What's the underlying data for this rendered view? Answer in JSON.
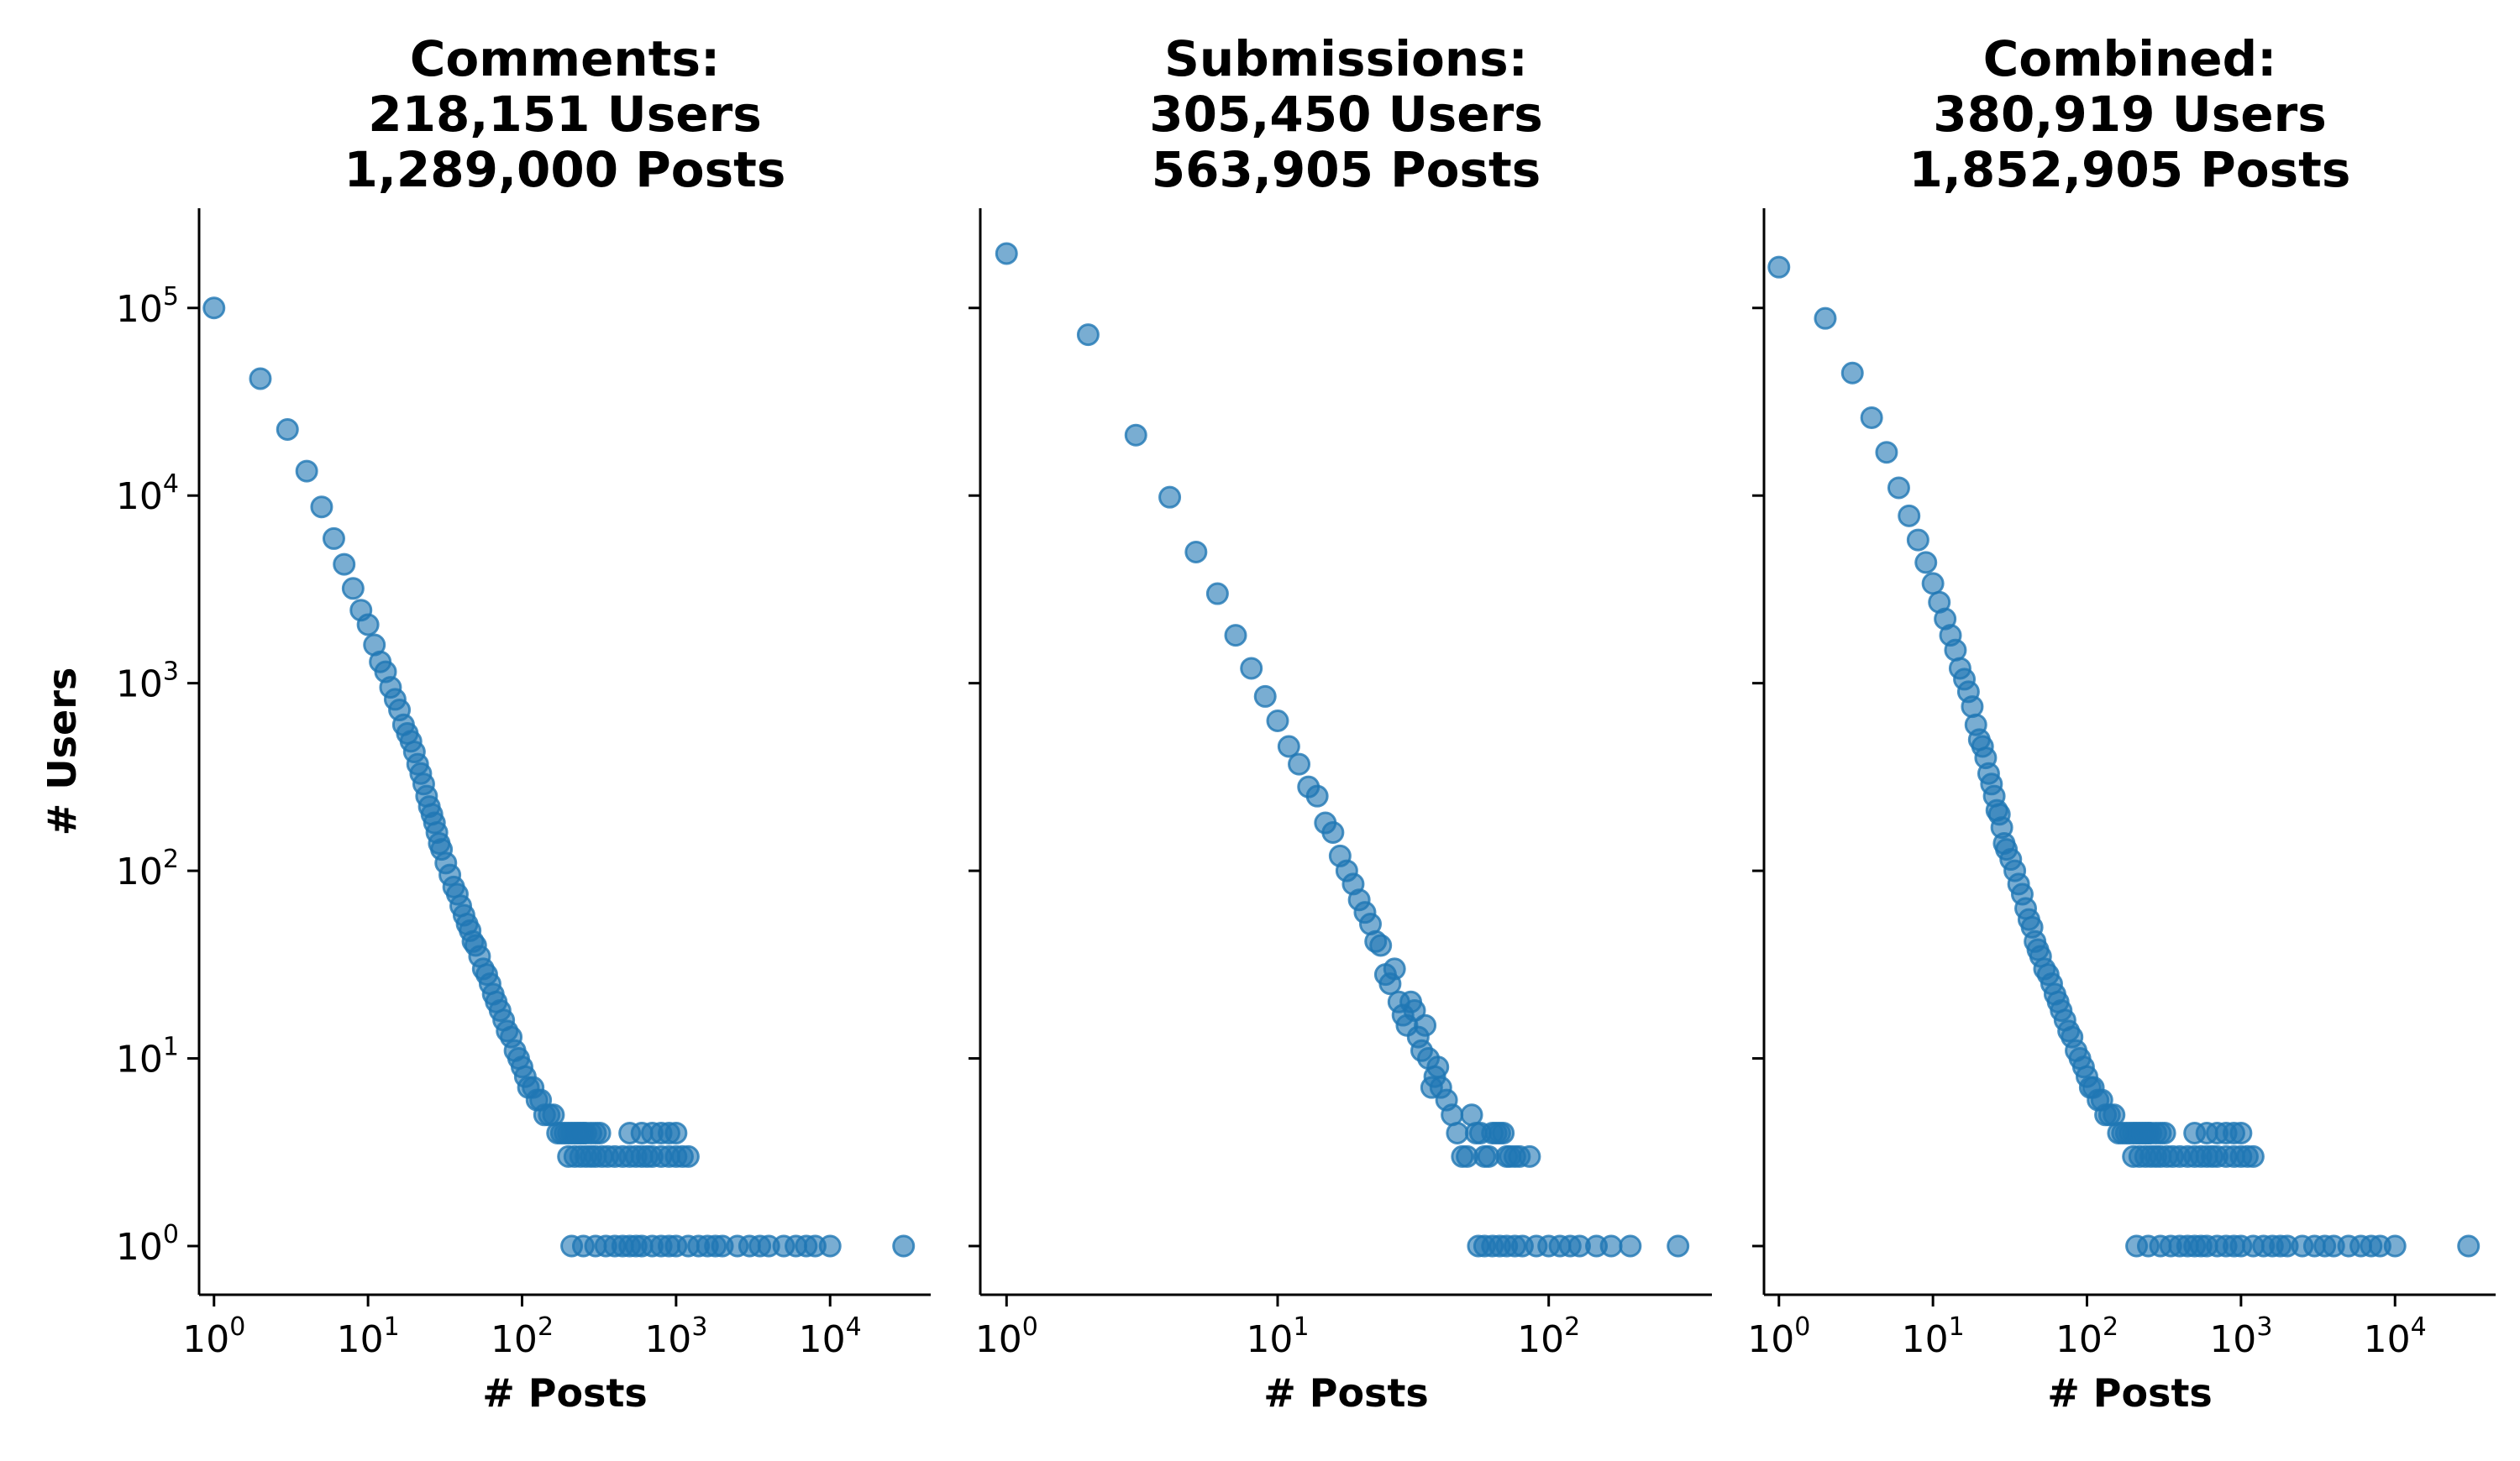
{
  "chart_data": [
    {
      "type": "scatter",
      "title": [
        "Comments:",
        "218,151 Users",
        "1,289,000 Posts"
      ],
      "xlabel": "# Posts",
      "ylabel": "# Users",
      "xscale": "log",
      "yscale": "log",
      "xlim": [
        0.8,
        45000
      ],
      "ylim": [
        0.55,
        340000
      ],
      "xticks": [
        1,
        10,
        100,
        1000,
        10000
      ],
      "yticks": [
        1,
        10,
        100,
        1000,
        10000,
        100000
      ],
      "show_yticklabels": true,
      "grid": false,
      "color": "#1f77b4",
      "alpha": 0.6,
      "series": [
        {
          "x": [
            1,
            2,
            3,
            4,
            5,
            6,
            7,
            8,
            9,
            10,
            11,
            12,
            13,
            14,
            15,
            16,
            17,
            18,
            19,
            20,
            21,
            22,
            23,
            24,
            25,
            26,
            27,
            28,
            29,
            30,
            32,
            34,
            36,
            38,
            40,
            42,
            44,
            46,
            48,
            50,
            53,
            56,
            59,
            62,
            65,
            68,
            72,
            76,
            80,
            85,
            90,
            95,
            100,
            105,
            110,
            118,
            125,
            132,
            140,
            150,
            160,
            170,
            180,
            190,
            200,
            210,
            220,
            230,
            240,
            250,
            260,
            280,
            300,
            320,
            200,
            220,
            240,
            260,
            280,
            300,
            330,
            360,
            400,
            450,
            500,
            550,
            600,
            650,
            700,
            800,
            900,
            1000,
            1100,
            1200,
            500,
            600,
            700,
            800,
            900,
            1000,
            210,
            250,
            300,
            350,
            400,
            450,
            500,
            550,
            600,
            700,
            800,
            900,
            1000,
            1200,
            1400,
            1600,
            1800,
            2000,
            2500,
            3000,
            3500,
            4000,
            5000,
            6000,
            7000,
            8000,
            10000,
            30000
          ],
          "y": [
            100000,
            42000,
            22500,
            13500,
            8700,
            5900,
            4300,
            3200,
            2450,
            2050,
            1600,
            1300,
            1150,
            950,
            820,
            720,
            600,
            540,
            490,
            430,
            370,
            330,
            290,
            250,
            220,
            200,
            180,
            160,
            140,
            130,
            110,
            95,
            82,
            75,
            65,
            58,
            52,
            48,
            42,
            40,
            35,
            30,
            28,
            25,
            22,
            20,
            18,
            16,
            14,
            13,
            11,
            10,
            9,
            8,
            7,
            7,
            6,
            6,
            5,
            5,
            5,
            4,
            4,
            4,
            4,
            4,
            4,
            4,
            4,
            4,
            4,
            4,
            4,
            4,
            3,
            3,
            3,
            3,
            3,
            3,
            3,
            3,
            3,
            3,
            3,
            3,
            3,
            3,
            3,
            3,
            3,
            3,
            3,
            3,
            4,
            4,
            4,
            4,
            4,
            4,
            1,
            1,
            1,
            1,
            1,
            1,
            1,
            1,
            1,
            1,
            1,
            1,
            1,
            1,
            1,
            1,
            1,
            1,
            1,
            1,
            1,
            1,
            1,
            1,
            1,
            1,
            1,
            1
          ]
        }
      ]
    },
    {
      "type": "scatter",
      "title": [
        "Submissions:",
        "305,450 Users",
        "563,905 Posts"
      ],
      "xlabel": "# Posts",
      "ylabel": "",
      "xscale": "log",
      "yscale": "log",
      "xlim": [
        0.8,
        400
      ],
      "ylim": [
        0.55,
        340000
      ],
      "xticks": [
        1,
        10,
        100
      ],
      "yticks": [
        1,
        10,
        100,
        1000,
        10000,
        100000
      ],
      "show_yticklabels": false,
      "grid": false,
      "color": "#1f77b4",
      "alpha": 0.6,
      "series": [
        {
          "x": [
            1,
            2,
            3,
            4,
            5,
            6,
            7,
            8,
            9,
            10,
            11,
            12,
            13,
            14,
            15,
            16,
            17,
            18,
            19,
            20,
            21,
            22,
            23,
            24,
            25,
            26,
            27,
            28,
            29,
            30,
            31,
            32,
            33,
            34,
            35,
            36,
            37,
            38,
            39,
            40,
            42,
            44,
            46,
            48,
            50,
            52,
            54,
            56,
            58,
            60,
            62,
            64,
            66,
            68,
            70,
            72,
            75,
            78,
            85,
            55,
            58,
            62,
            66,
            70,
            75,
            80,
            90,
            100,
            110,
            120,
            130,
            150,
            170,
            200,
            300
          ],
          "y": [
            195000,
            72000,
            21000,
            9800,
            5000,
            3000,
            1800,
            1200,
            850,
            630,
            460,
            370,
            280,
            250,
            180,
            160,
            120,
            100,
            85,
            70,
            60,
            52,
            42,
            40,
            28,
            25,
            30,
            20,
            17,
            15,
            20,
            18,
            13,
            11,
            15,
            10,
            7,
            8,
            9,
            7,
            6,
            5,
            4,
            3,
            3,
            5,
            4,
            4,
            3,
            3,
            4,
            4,
            4,
            4,
            3,
            3,
            3,
            3,
            3,
            1,
            1,
            1,
            1,
            1,
            1,
            1,
            1,
            1,
            1,
            1,
            1,
            1,
            1,
            1,
            1
          ]
        }
      ]
    },
    {
      "type": "scatter",
      "title": [
        "Combined:",
        "380,919 Users",
        "1,852,905 Posts"
      ],
      "xlabel": "# Posts",
      "ylabel": "",
      "xscale": "log",
      "yscale": "log",
      "xlim": [
        0.8,
        45000
      ],
      "ylim": [
        0.55,
        340000
      ],
      "xticks": [
        1,
        10,
        100,
        1000,
        10000
      ],
      "yticks": [
        1,
        10,
        100,
        1000,
        10000,
        100000
      ],
      "show_yticklabels": false,
      "grid": false,
      "color": "#1f77b4",
      "alpha": 0.6,
      "series": [
        {
          "x": [
            1,
            2,
            3,
            4,
            5,
            6,
            7,
            8,
            9,
            10,
            11,
            12,
            13,
            14,
            15,
            16,
            17,
            18,
            19,
            20,
            21,
            22,
            23,
            24,
            25,
            26,
            27,
            28,
            29,
            30,
            32,
            34,
            36,
            38,
            40,
            42,
            44,
            46,
            48,
            50,
            53,
            56,
            59,
            62,
            65,
            68,
            72,
            76,
            80,
            85,
            90,
            95,
            100,
            105,
            110,
            118,
            125,
            132,
            140,
            150,
            160,
            170,
            180,
            190,
            200,
            210,
            220,
            230,
            240,
            250,
            260,
            280,
            300,
            320,
            200,
            220,
            240,
            260,
            280,
            300,
            330,
            360,
            400,
            450,
            500,
            550,
            600,
            650,
            700,
            800,
            900,
            1000,
            1100,
            1200,
            500,
            600,
            700,
            800,
            900,
            1000,
            210,
            250,
            300,
            350,
            400,
            450,
            500,
            550,
            600,
            700,
            800,
            900,
            1000,
            1200,
            1400,
            1600,
            1800,
            2000,
            2500,
            3000,
            3500,
            4000,
            5000,
            6000,
            7000,
            8000,
            10000,
            30000
          ],
          "y": [
            165000,
            88000,
            45000,
            26000,
            17000,
            11000,
            7800,
            5800,
            4400,
            3400,
            2700,
            2200,
            1800,
            1500,
            1200,
            1050,
            900,
            750,
            600,
            500,
            460,
            400,
            330,
            290,
            250,
            210,
            200,
            170,
            140,
            130,
            115,
            100,
            85,
            75,
            63,
            55,
            50,
            42,
            38,
            35,
            30,
            28,
            25,
            22,
            20,
            18,
            16,
            14,
            13,
            11,
            10,
            9,
            8,
            7,
            7,
            6,
            6,
            5,
            5,
            5,
            4,
            4,
            4,
            4,
            4,
            4,
            4,
            4,
            4,
            4,
            4,
            4,
            4,
            4,
            3,
            3,
            3,
            3,
            3,
            3,
            3,
            3,
            3,
            3,
            3,
            3,
            3,
            3,
            3,
            3,
            3,
            3,
            3,
            3,
            4,
            4,
            4,
            4,
            4,
            4,
            1,
            1,
            1,
            1,
            1,
            1,
            1,
            1,
            1,
            1,
            1,
            1,
            1,
            1,
            1,
            1,
            1,
            1,
            1,
            1,
            1,
            1,
            1,
            1,
            1,
            1,
            1,
            1
          ]
        }
      ]
    }
  ]
}
